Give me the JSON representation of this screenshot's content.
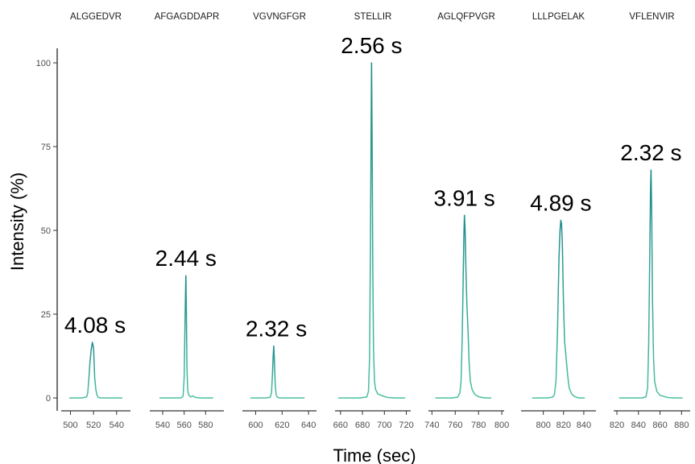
{
  "chart_data": {
    "type": "line",
    "xlabel": "Time (sec)",
    "ylabel": "Intensity (%)",
    "ylim": [
      0,
      100
    ],
    "yticks": [
      0,
      25,
      50,
      75,
      100
    ],
    "grid": false,
    "colors": {
      "peak_low": "#4bbfa0",
      "peak_high": "#1e8c8c",
      "axis": "#000000"
    },
    "panels": [
      {
        "title": "ALGGEDVR",
        "peak_label": "4.08 s",
        "xlim": [
          492,
          552
        ],
        "xticks": [
          500,
          520,
          540
        ],
        "points": [
          [
            499,
            0
          ],
          [
            505,
            0
          ],
          [
            510,
            0
          ],
          [
            514,
            0.3
          ],
          [
            515,
            1.5
          ],
          [
            516,
            6
          ],
          [
            517,
            11
          ],
          [
            518,
            14.5
          ],
          [
            519,
            16.6
          ],
          [
            520,
            15
          ],
          [
            520.5,
            11
          ],
          [
            521,
            6
          ],
          [
            522,
            2.5
          ],
          [
            523,
            0.8
          ],
          [
            524,
            0.2
          ],
          [
            526,
            0
          ],
          [
            532,
            0
          ],
          [
            538,
            0
          ],
          [
            545,
            0
          ]
        ]
      },
      {
        "title": "AFGAGDDAPR",
        "peak_label": "2.44 s",
        "xlim": [
          528,
          597
        ],
        "xticks": [
          540,
          560,
          580
        ],
        "points": [
          [
            537,
            0
          ],
          [
            545,
            0
          ],
          [
            552,
            0
          ],
          [
            557,
            0
          ],
          [
            559,
            0.5
          ],
          [
            560,
            6
          ],
          [
            560.8,
            22
          ],
          [
            561.2,
            30
          ],
          [
            561.6,
            36.5
          ],
          [
            562.1,
            25
          ],
          [
            562.6,
            9
          ],
          [
            563.3,
            2.5
          ],
          [
            564,
            1
          ],
          [
            566,
            0.3
          ],
          [
            568,
            0.6
          ],
          [
            570,
            0.2
          ],
          [
            574,
            0
          ],
          [
            580,
            0
          ],
          [
            587,
            0
          ]
        ]
      },
      {
        "title": "VGVNGFGR",
        "peak_label": "2.32 s",
        "xlim": [
          590,
          646
        ],
        "xticks": [
          600,
          620,
          640
        ],
        "points": [
          [
            596,
            0
          ],
          [
            602,
            0
          ],
          [
            608,
            0
          ],
          [
            611,
            0.2
          ],
          [
            612,
            1.5
          ],
          [
            612.7,
            7
          ],
          [
            613.2,
            12
          ],
          [
            613.7,
            15.5
          ],
          [
            614.2,
            11
          ],
          [
            614.8,
            4
          ],
          [
            615.5,
            1
          ],
          [
            616.5,
            0.2
          ],
          [
            618,
            0
          ],
          [
            624,
            0
          ],
          [
            630,
            0
          ],
          [
            637,
            0
          ]
        ]
      },
      {
        "title": "STELLIR",
        "peak_label": "2.56 s",
        "xlim": [
          655,
          724
        ],
        "xticks": [
          660,
          680,
          700,
          720
        ],
        "points": [
          [
            658,
            0
          ],
          [
            665,
            0
          ],
          [
            672,
            0
          ],
          [
            678,
            0
          ],
          [
            684,
            0.3
          ],
          [
            685.5,
            2
          ],
          [
            686.5,
            12
          ],
          [
            687.3,
            45
          ],
          [
            687.9,
            80
          ],
          [
            688.3,
            100
          ],
          [
            688.8,
            78
          ],
          [
            689.4,
            40
          ],
          [
            690.1,
            14
          ],
          [
            691,
            5
          ],
          [
            692,
            2.5
          ],
          [
            694,
            1.2
          ],
          [
            697,
            0.8
          ],
          [
            700,
            0.4
          ],
          [
            704,
            0.1
          ],
          [
            710,
            0
          ],
          [
            719,
            0
          ]
        ]
      },
      {
        "title": "AGLQFPVGR",
        "peak_label": "3.91 s",
        "xlim": [
          737,
          802
        ],
        "xticks": [
          740,
          760,
          780,
          800
        ],
        "points": [
          [
            743,
            0
          ],
          [
            750,
            0
          ],
          [
            757,
            0
          ],
          [
            762,
            0.2
          ],
          [
            764,
            1.5
          ],
          [
            765,
            5
          ],
          [
            766,
            18
          ],
          [
            766.8,
            35
          ],
          [
            767.4,
            48
          ],
          [
            767.9,
            54.5
          ],
          [
            768.5,
            50
          ],
          [
            769.2,
            38
          ],
          [
            770,
            28
          ],
          [
            771,
            20
          ],
          [
            772,
            10
          ],
          [
            773,
            5
          ],
          [
            774.5,
            2.5
          ],
          [
            777,
            1
          ],
          [
            780,
            0.4
          ],
          [
            785,
            0
          ],
          [
            791,
            0
          ]
        ]
      },
      {
        "title": "LLLPGELAK",
        "peak_label": "4.89 s",
        "xlim": [
          778,
          852
        ],
        "xticks": [
          800,
          820,
          840
        ],
        "points": [
          [
            789,
            0
          ],
          [
            797,
            0
          ],
          [
            804,
            0
          ],
          [
            809,
            0.2
          ],
          [
            811,
            1
          ],
          [
            812.5,
            5
          ],
          [
            814,
            20
          ],
          [
            815.5,
            42
          ],
          [
            816.5,
            50
          ],
          [
            817.3,
            53
          ],
          [
            818,
            52
          ],
          [
            818.8,
            46
          ],
          [
            819.8,
            30
          ],
          [
            821,
            17
          ],
          [
            822.5,
            12
          ],
          [
            824,
            7
          ],
          [
            825.5,
            3
          ],
          [
            828,
            1.2
          ],
          [
            831,
            0.4
          ],
          [
            835,
            0
          ],
          [
            841,
            0
          ]
        ]
      },
      {
        "title": "VFLENVIR",
        "peak_label": "2.32 s",
        "xlim": [
          817,
          888
        ],
        "xticks": [
          820,
          840,
          860,
          880
        ],
        "points": [
          [
            822,
            0
          ],
          [
            830,
            0
          ],
          [
            838,
            0
          ],
          [
            843,
            0
          ],
          [
            847,
            0.3
          ],
          [
            848.5,
            3
          ],
          [
            849.5,
            16
          ],
          [
            850.4,
            40
          ],
          [
            851.2,
            62
          ],
          [
            851.7,
            68
          ],
          [
            852.3,
            55
          ],
          [
            853,
            30
          ],
          [
            854,
            12
          ],
          [
            855,
            5
          ],
          [
            857,
            2
          ],
          [
            860,
            0.8
          ],
          [
            864,
            0.4
          ],
          [
            868,
            0.1
          ],
          [
            874,
            0
          ],
          [
            881,
            0
          ]
        ]
      }
    ]
  }
}
